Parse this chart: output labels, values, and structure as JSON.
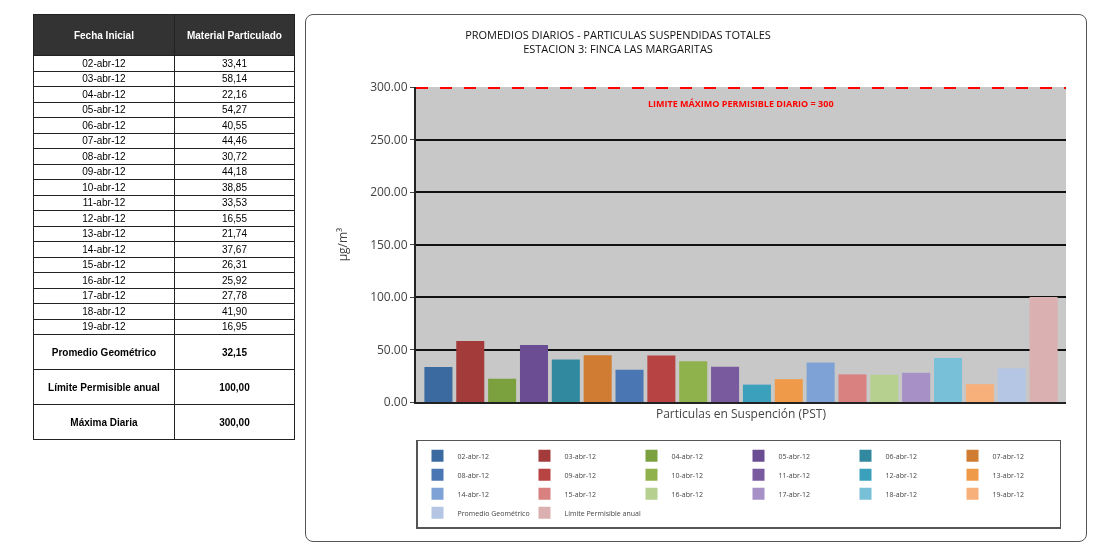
{
  "chart_data": [
    {
      "type": "other",
      "annotations": [
        "Fecha Inicial",
        "Material Particulado",
        "02-abr-12",
        "33,41",
        "03-abr-12",
        "58,14",
        "04-abr-12",
        "22,16",
        "05-abr-12",
        "54,27",
        "06-abr-12",
        "40,55",
        "07-abr-12",
        "44,46",
        "08-abr-12",
        "30,72",
        "09-abr-12",
        "44,18",
        "10-abr-12",
        "38,85",
        "11-abr-12",
        "33,53",
        "12-abr-12",
        "16,55",
        "13-abr-12",
        "21,74",
        "14-abr-12",
        "37,67",
        "15-abr-12",
        "26,31",
        "16-abr-12",
        "25,92",
        "17-abr-12",
        "27,78",
        "18-abr-12",
        "41,90",
        "19-abr-12",
        "16,95",
        "Promedio Geométrico",
        "32,15",
        "Límite Permisible anual",
        "100,00",
        "Máxima Diaria",
        "300,00"
      ]
    },
    {
      "type": "bar",
      "title": "PROMEDIOS DIARIOS - PARTICULAS SUSPENDIDAS TOTALES\nESTACION 3: FINCA LAS MARGARITAS",
      "xlabel": "Particulas en Suspención (PST)",
      "ylabel": "μg/m³",
      "categories": [
        null
      ],
      "series": [
        {
          "name": "02-abr-12",
          "color": "#3a6aa0",
          "values": [
            33.41
          ]
        },
        {
          "name": "03-abr-12",
          "color": "#a33b3b",
          "values": [
            58.14
          ]
        },
        {
          "name": "04-abr-12",
          "color": "#7ba03e",
          "values": [
            22.16
          ]
        },
        {
          "name": "05-abr-12",
          "color": "#6a4d93",
          "values": [
            54.27
          ]
        },
        {
          "name": "06-abr-12",
          "color": "#31899f",
          "values": [
            40.55
          ]
        },
        {
          "name": "07-abr-12",
          "color": "#d07c32",
          "values": [
            44.46
          ]
        },
        {
          "name": "08-abr-12",
          "color": "#4a76b3",
          "values": [
            30.72
          ]
        },
        {
          "name": "09-abr-12",
          "color": "#b84343",
          "values": [
            44.18
          ]
        },
        {
          "name": "10-abr-12",
          "color": "#90b24c",
          "values": [
            38.85
          ]
        },
        {
          "name": "11-abr-12",
          "color": "#7a5a9f",
          "values": [
            33.53
          ]
        },
        {
          "name": "12-abr-12",
          "color": "#3aa0bc",
          "values": [
            16.55
          ]
        },
        {
          "name": "13-abr-12",
          "color": "#ef9a48",
          "values": [
            21.74
          ]
        },
        {
          "name": "14-abr-12",
          "color": "#7ea2d6",
          "values": [
            37.67
          ]
        },
        {
          "name": "15-abr-12",
          "color": "#d98080",
          "values": [
            26.31
          ]
        },
        {
          "name": "16-abr-12",
          "color": "#b5d08f",
          "values": [
            25.92
          ]
        },
        {
          "name": "17-abr-12",
          "color": "#a690c5",
          "values": [
            27.78
          ]
        },
        {
          "name": "18-abr-12",
          "color": "#78c0d8",
          "values": [
            41.9
          ]
        },
        {
          "name": "19-abr-12",
          "color": "#f8b07a",
          "values": [
            16.95
          ]
        },
        {
          "name": "Promedio Geométrico",
          "color": "#b4c6e4",
          "values": [
            32.15
          ]
        },
        {
          "name": "Límite Permisible anual",
          "color": "#dbb0b0",
          "values": [
            100.0
          ]
        }
      ],
      "ylim": [
        0,
        300
      ],
      "yticks": [
        {
          "value": 0,
          "label": "0.00"
        },
        {
          "value": 50,
          "label": "50.00"
        },
        {
          "value": 100,
          "label": "100.00"
        },
        {
          "value": 150,
          "label": "150.00"
        },
        {
          "value": 200,
          "label": "200.00"
        },
        {
          "value": 250,
          "label": "250.00"
        },
        {
          "value": 300,
          "label": "300.00"
        }
      ],
      "ref_lines": [
        {
          "axis": "y",
          "value": 300,
          "label": "LIMITE MÁXIMO PERMISIBLE DIARIO = 300",
          "color": "#ff0000",
          "line_style": "dashed"
        }
      ],
      "grid": "y",
      "legend": "bottom"
    }
  ]
}
